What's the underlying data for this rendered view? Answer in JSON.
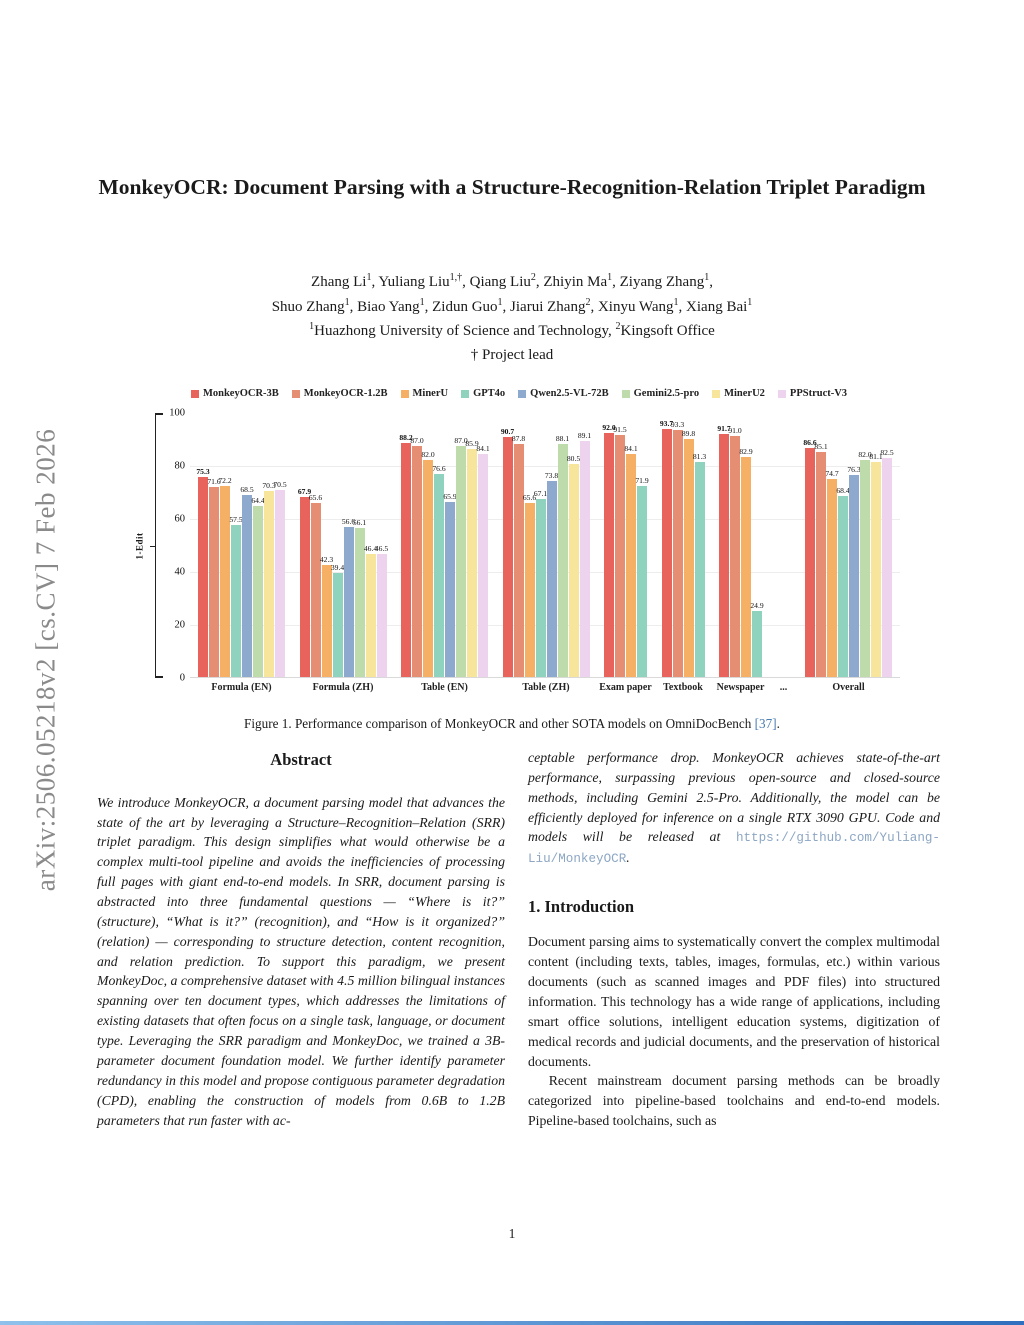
{
  "arxiv_label": "arXiv:2506.05218v2  [cs.CV]  7 Feb 2026",
  "title": "MonkeyOCR: Document Parsing with a Structure-Recognition-Relation Triplet Paradigm",
  "authors": {
    "lines": [
      [
        {
          "t": "Zhang Li"
        },
        {
          "t": "1",
          "sup": true
        },
        {
          "t": ", Yuliang Liu"
        },
        {
          "t": "1,†",
          "sup": true
        },
        {
          "t": ", Qiang Liu"
        },
        {
          "t": "2",
          "sup": true
        },
        {
          "t": ", Zhiyin Ma"
        },
        {
          "t": "1",
          "sup": true
        },
        {
          "t": ", Ziyang Zhang"
        },
        {
          "t": "1",
          "sup": true
        },
        {
          "t": ","
        }
      ],
      [
        {
          "t": "Shuo Zhang"
        },
        {
          "t": "1",
          "sup": true
        },
        {
          "t": ", Biao Yang"
        },
        {
          "t": "1",
          "sup": true
        },
        {
          "t": ", Zidun Guo"
        },
        {
          "t": "1",
          "sup": true
        },
        {
          "t": ", Jiarui Zhang"
        },
        {
          "t": "2",
          "sup": true
        },
        {
          "t": ", Xinyu Wang"
        },
        {
          "t": "1",
          "sup": true
        },
        {
          "t": ", Xiang Bai"
        },
        {
          "t": "1",
          "sup": true
        }
      ],
      [
        {
          "t": "1",
          "sup": true
        },
        {
          "t": "Huazhong University of Science and Technology, "
        },
        {
          "t": "2",
          "sup": true
        },
        {
          "t": "Kingsoft Office"
        }
      ],
      [
        {
          "t": "† Project lead"
        }
      ]
    ]
  },
  "chart_data": {
    "type": "bar",
    "title": "",
    "xlabel": "",
    "ylabel": "1-Edit",
    "ylim": [
      0,
      100
    ],
    "yticks": [
      0,
      20,
      40,
      60,
      80,
      100
    ],
    "grid": true,
    "legend_position": "top",
    "categories": [
      "Formula (EN)",
      "Formula (ZH)",
      "Table (EN)",
      "Table (ZH)",
      "Exam paper",
      "Textbook",
      "Newspaper",
      "...",
      "Overall"
    ],
    "series": [
      {
        "name": "MonkeyOCR-3B",
        "color": "#e8635c",
        "pattern": "dots",
        "values": [
          75.3,
          67.9,
          88.2,
          90.7,
          92.0,
          93.7,
          91.7,
          null,
          86.6
        ]
      },
      {
        "name": "MonkeyOCR-1.2B",
        "color": "#e58e74",
        "values": [
          71.6,
          65.6,
          87.0,
          87.8,
          91.5,
          93.3,
          91.0,
          null,
          85.1
        ]
      },
      {
        "name": "MinerU",
        "color": "#f5b066",
        "values": [
          72.2,
          42.3,
          82.0,
          65.6,
          84.1,
          89.8,
          82.9,
          null,
          74.7
        ]
      },
      {
        "name": "GPT4o",
        "color": "#8fd2bd",
        "values": [
          57.5,
          39.4,
          76.6,
          67.1,
          71.9,
          81.3,
          24.9,
          null,
          68.4
        ]
      },
      {
        "name": "Qwen2.5-VL-72B",
        "color": "#8da9ce",
        "values": [
          68.5,
          56.6,
          65.9,
          73.8,
          null,
          null,
          null,
          null,
          76.3
        ]
      },
      {
        "name": "Gemini2.5-pro",
        "color": "#bedcab",
        "values": [
          64.4,
          56.1,
          87.0,
          88.1,
          null,
          null,
          null,
          null,
          82.0
        ]
      },
      {
        "name": "MinerU2",
        "color": "#f7e59c",
        "values": [
          70.3,
          46.4,
          85.9,
          80.5,
          null,
          null,
          null,
          null,
          81.1
        ]
      },
      {
        "name": "PPStruct-V3",
        "color": "#eed3ef",
        "values": [
          70.5,
          46.5,
          84.1,
          89.1,
          null,
          null,
          null,
          null,
          82.5
        ]
      }
    ]
  },
  "figure": {
    "caption_prefix": "Figure 1. Performance comparison of MonkeyOCR and other SOTA models on OmniDocBench ",
    "caption_ref": "[37]",
    "caption_suffix": "."
  },
  "abstract": {
    "heading": "Abstract",
    "text": "We introduce MonkeyOCR, a document parsing model that advances the state of the art by leveraging a Structure–Recognition–Relation (SRR) triplet paradigm. This design simplifies what would otherwise be a complex multi-tool pipeline and avoids the inefficiencies of processing full pages with giant end-to-end models. In SRR, document parsing is abstracted into three fundamental questions — “Where is it?” (structure), “What is it?” (recognition), and “How is it organized?” (relation) — corresponding to structure detection, content recognition, and relation prediction. To support this paradigm, we present MonkeyDoc, a comprehensive dataset with 4.5 million bilingual instances spanning over ten document types, which addresses the limitations of existing datasets that often focus on a single task, language, or document type. Leveraging the SRR paradigm and MonkeyDoc, we trained a 3B-parameter document foundation model. We further identify parameter redundancy in this model and propose contiguous parameter degradation (CPD), enabling the construction of models from 0.6B to 1.2B parameters that run faster with ac-",
    "continuation": "ceptable performance drop. MonkeyOCR achieves state-of-the-art performance, surpassing previous open-source and closed-source methods, including Gemini 2.5-Pro. Additionally, the model can be efficiently deployed for inference on a single RTX 3090 GPU. Code and models will be released at ",
    "link": "https://github.com/Yuliang-Liu/MonkeyOCR",
    "after_link": "."
  },
  "introduction": {
    "heading": "1. Introduction",
    "paragraphs": [
      "Document parsing aims to systematically convert the complex multimodal content (including texts, tables, images, formulas, etc.) within various documents (such as scanned images and PDF files) into structured information. This technology has a wide range of applications, including smart office solutions, intelligent education systems, digitization of medical records and judicial documents, and the preservation of historical documents.",
      "Recent mainstream document parsing methods can be broadly categorized into pipeline-based toolchains and end-to-end models.  Pipeline-based toolchains, such as"
    ]
  },
  "page_number": "1"
}
